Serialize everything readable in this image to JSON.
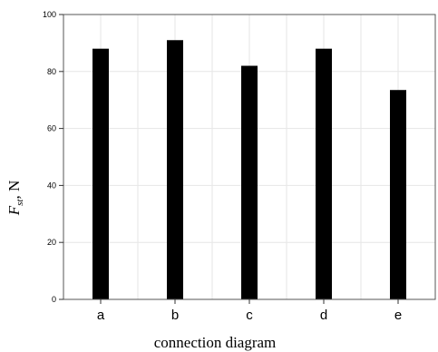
{
  "chart_data": {
    "type": "bar",
    "categories": [
      "a",
      "b",
      "c",
      "d",
      "e"
    ],
    "values": [
      88,
      91,
      82,
      88,
      73.5
    ],
    "xlabel": "connection diagram",
    "ylabel": {
      "main": "F",
      "subscript": "st",
      "unit": ", N"
    },
    "ylim": [
      0,
      100
    ],
    "yticks": [
      "0",
      "20",
      "40",
      "60",
      "80",
      "100"
    ],
    "grid": true,
    "legend": "none",
    "bar_color": "#000000",
    "grid_color": "#e6e6e6"
  }
}
